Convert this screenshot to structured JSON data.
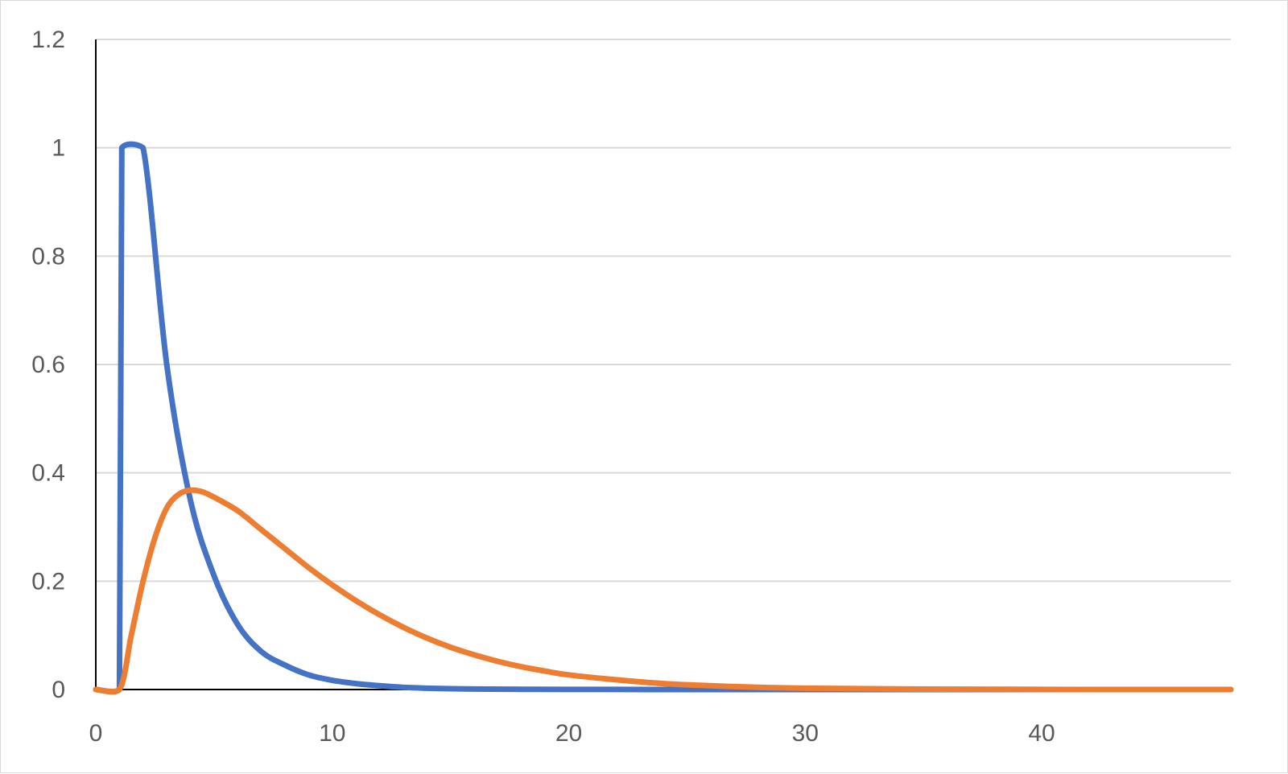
{
  "chart_data": {
    "type": "line",
    "title": "",
    "xlabel": "",
    "ylabel": "",
    "xlim": [
      0,
      48
    ],
    "ylim": [
      0,
      1.2
    ],
    "x_ticks": [
      0,
      10,
      20,
      30,
      40
    ],
    "x_tick_labels": [
      "0",
      "10",
      "20",
      "30",
      "40"
    ],
    "y_ticks": [
      0,
      0.2,
      0.4,
      0.6,
      0.8,
      1,
      1.2
    ],
    "y_tick_labels": [
      "0",
      "0.2",
      "0.4",
      "0.6",
      "0.8",
      "1",
      "1.2"
    ],
    "grid": "horizontal",
    "legend": "none",
    "series": [
      {
        "color": "#4472c4",
        "x": [
          0,
          1,
          1.1,
          2,
          3,
          4,
          5,
          6,
          7,
          8,
          9,
          10,
          11,
          12,
          13,
          14,
          15,
          16,
          18,
          20,
          25,
          30,
          35,
          40,
          45,
          48
        ],
        "y": [
          0,
          0,
          1,
          1,
          0.6,
          0.35,
          0.21,
          0.12,
          0.07,
          0.045,
          0.027,
          0.017,
          0.011,
          0.007,
          0.004,
          0.0025,
          0.0015,
          0.001,
          0.0004,
          0.0002,
          0,
          0,
          0,
          0,
          0,
          0
        ]
      },
      {
        "color": "#ed7d31",
        "x": [
          0,
          1,
          1.5,
          2,
          2.5,
          3,
          3.5,
          4,
          4.5,
          5,
          6,
          7,
          8,
          9,
          10,
          11,
          12,
          13,
          14,
          15,
          16,
          17,
          18,
          19,
          20,
          22,
          24,
          26,
          28,
          30,
          35,
          40,
          45,
          48
        ],
        "y": [
          0,
          0,
          0.1,
          0.2,
          0.28,
          0.335,
          0.36,
          0.368,
          0.365,
          0.355,
          0.33,
          0.295,
          0.26,
          0.225,
          0.193,
          0.164,
          0.138,
          0.115,
          0.095,
          0.078,
          0.064,
          0.052,
          0.042,
          0.034,
          0.027,
          0.018,
          0.011,
          0.007,
          0.004,
          0.0025,
          0.0008,
          0.0002,
          0,
          0
        ]
      }
    ]
  }
}
